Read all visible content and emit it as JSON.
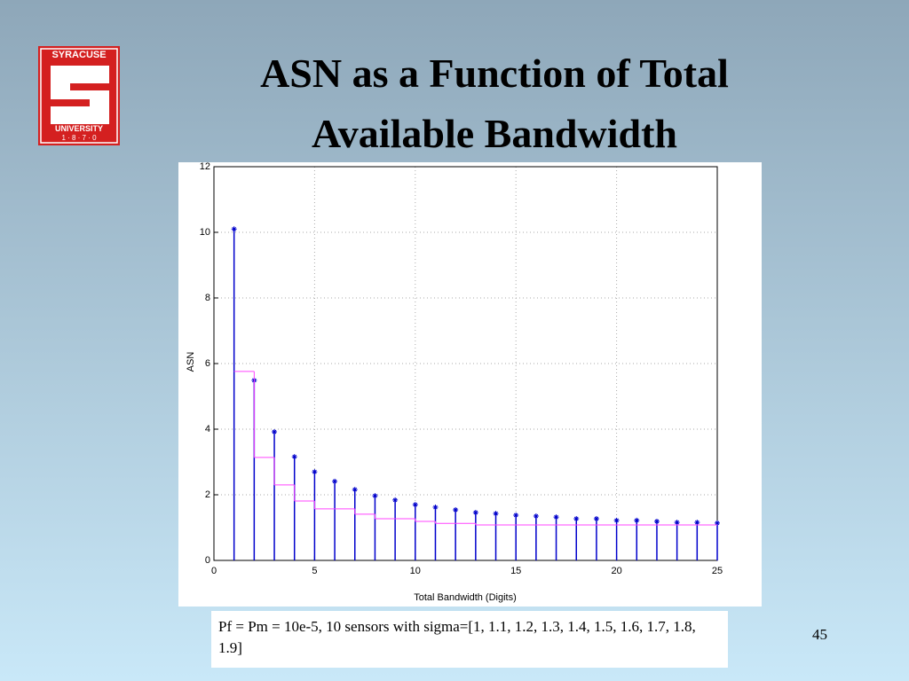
{
  "logo": {
    "top": "SYRACUSE",
    "bottom": "UNIVERSITY",
    "year": "1 · 8 · 7 · 0"
  },
  "title": [
    "ASN as a Function of Total",
    "Available Bandwidth"
  ],
  "chart_data": {
    "type": "stem",
    "xlabel": "Total Bandwidth (Digits)",
    "ylabel": "ASN",
    "x": [
      1,
      2,
      3,
      4,
      5,
      6,
      7,
      8,
      9,
      10,
      11,
      12,
      13,
      14,
      15,
      16,
      17,
      18,
      19,
      20,
      21,
      22,
      23,
      24,
      25
    ],
    "series": [
      {
        "type": "stem",
        "color": "#0000cc",
        "values": [
          10.1,
          5.49,
          3.92,
          3.16,
          2.7,
          2.41,
          2.16,
          1.97,
          1.84,
          1.7,
          1.62,
          1.54,
          1.46,
          1.43,
          1.38,
          1.35,
          1.32,
          1.27,
          1.27,
          1.22,
          1.22,
          1.19,
          1.16,
          1.16,
          1.14
        ]
      },
      {
        "type": "step",
        "color": "#ff44ff",
        "values": [
          5.76,
          3.14,
          2.3,
          1.81,
          1.57,
          1.57,
          1.41,
          1.27,
          1.27,
          1.19,
          1.13,
          1.13,
          1.08,
          1.08,
          1.08,
          1.08,
          1.08,
          1.08,
          1.08,
          1.08,
          1.08,
          1.08,
          1.08,
          1.08,
          1.08
        ]
      }
    ],
    "xlim": [
      0,
      25
    ],
    "ylim": [
      0,
      12
    ],
    "xticks": [
      0,
      5,
      10,
      15,
      20,
      25
    ],
    "yticks": [
      0,
      2,
      4,
      6,
      8,
      10,
      12
    ],
    "grid": true
  },
  "caption": "Pf = Pm = 10e-5, 10 sensors with sigma=[1, 1.1, 1.2, 1.3, 1.4, 1.5, 1.6, 1.7, 1.8, 1.9]",
  "page_number": "45"
}
